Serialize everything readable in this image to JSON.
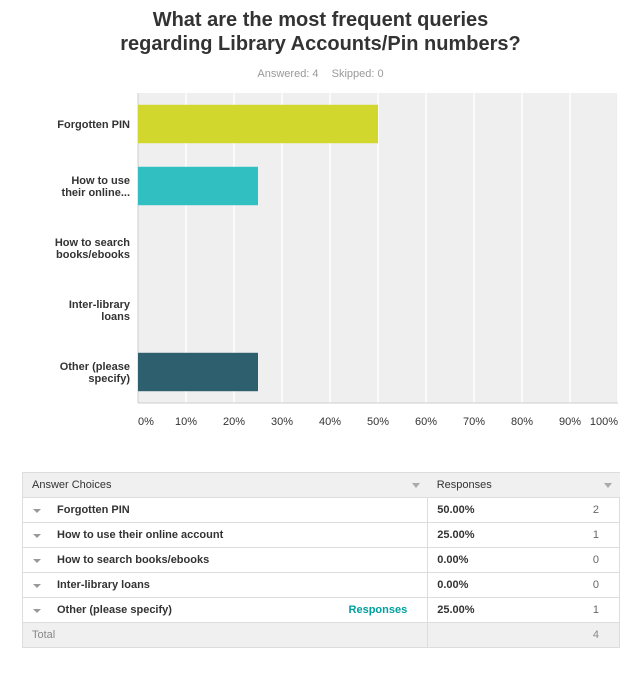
{
  "title_line1": "What are the most frequent queries",
  "title_line2": "regarding Library Accounts/Pin numbers?",
  "answered_label": "Answered: 4",
  "skipped_label": "Skipped: 0",
  "colors": {
    "bar_forgotten_pin": "#d2d72d",
    "bar_online_account": "#32bfc2",
    "bar_other": "#2e5f6e",
    "plot_bg": "#efefef",
    "link": "#00a0a0"
  },
  "chart_data": {
    "type": "bar",
    "orientation": "horizontal",
    "categories": [
      [
        "Forgotten PIN"
      ],
      [
        "How to use",
        "their online..."
      ],
      [
        "How to search",
        "books/ebooks"
      ],
      [
        "Inter-library",
        "loans"
      ],
      [
        "Other (please",
        "specify)"
      ]
    ],
    "values": [
      50,
      25,
      0,
      0,
      25
    ],
    "xlim": [
      0,
      100
    ],
    "x_ticks": [
      "0%",
      "10%",
      "20%",
      "30%",
      "40%",
      "50%",
      "60%",
      "70%",
      "80%",
      "90%",
      "100%"
    ],
    "grid": true
  },
  "table": {
    "headers": {
      "choices": "Answer Choices",
      "responses": "Responses"
    },
    "rows": [
      {
        "label": "Forgotten PIN",
        "link": "",
        "pct": "50.00%",
        "count": "2"
      },
      {
        "label": "How to use their online account",
        "link": "",
        "pct": "25.00%",
        "count": "1"
      },
      {
        "label": "How to search books/ebooks",
        "link": "",
        "pct": "0.00%",
        "count": "0"
      },
      {
        "label": "Inter-library loans",
        "link": "",
        "pct": "0.00%",
        "count": "0"
      },
      {
        "label": "Other (please specify)",
        "link": "Responses",
        "pct": "25.00%",
        "count": "1"
      }
    ],
    "total_label": "Total",
    "total_count": "4"
  }
}
